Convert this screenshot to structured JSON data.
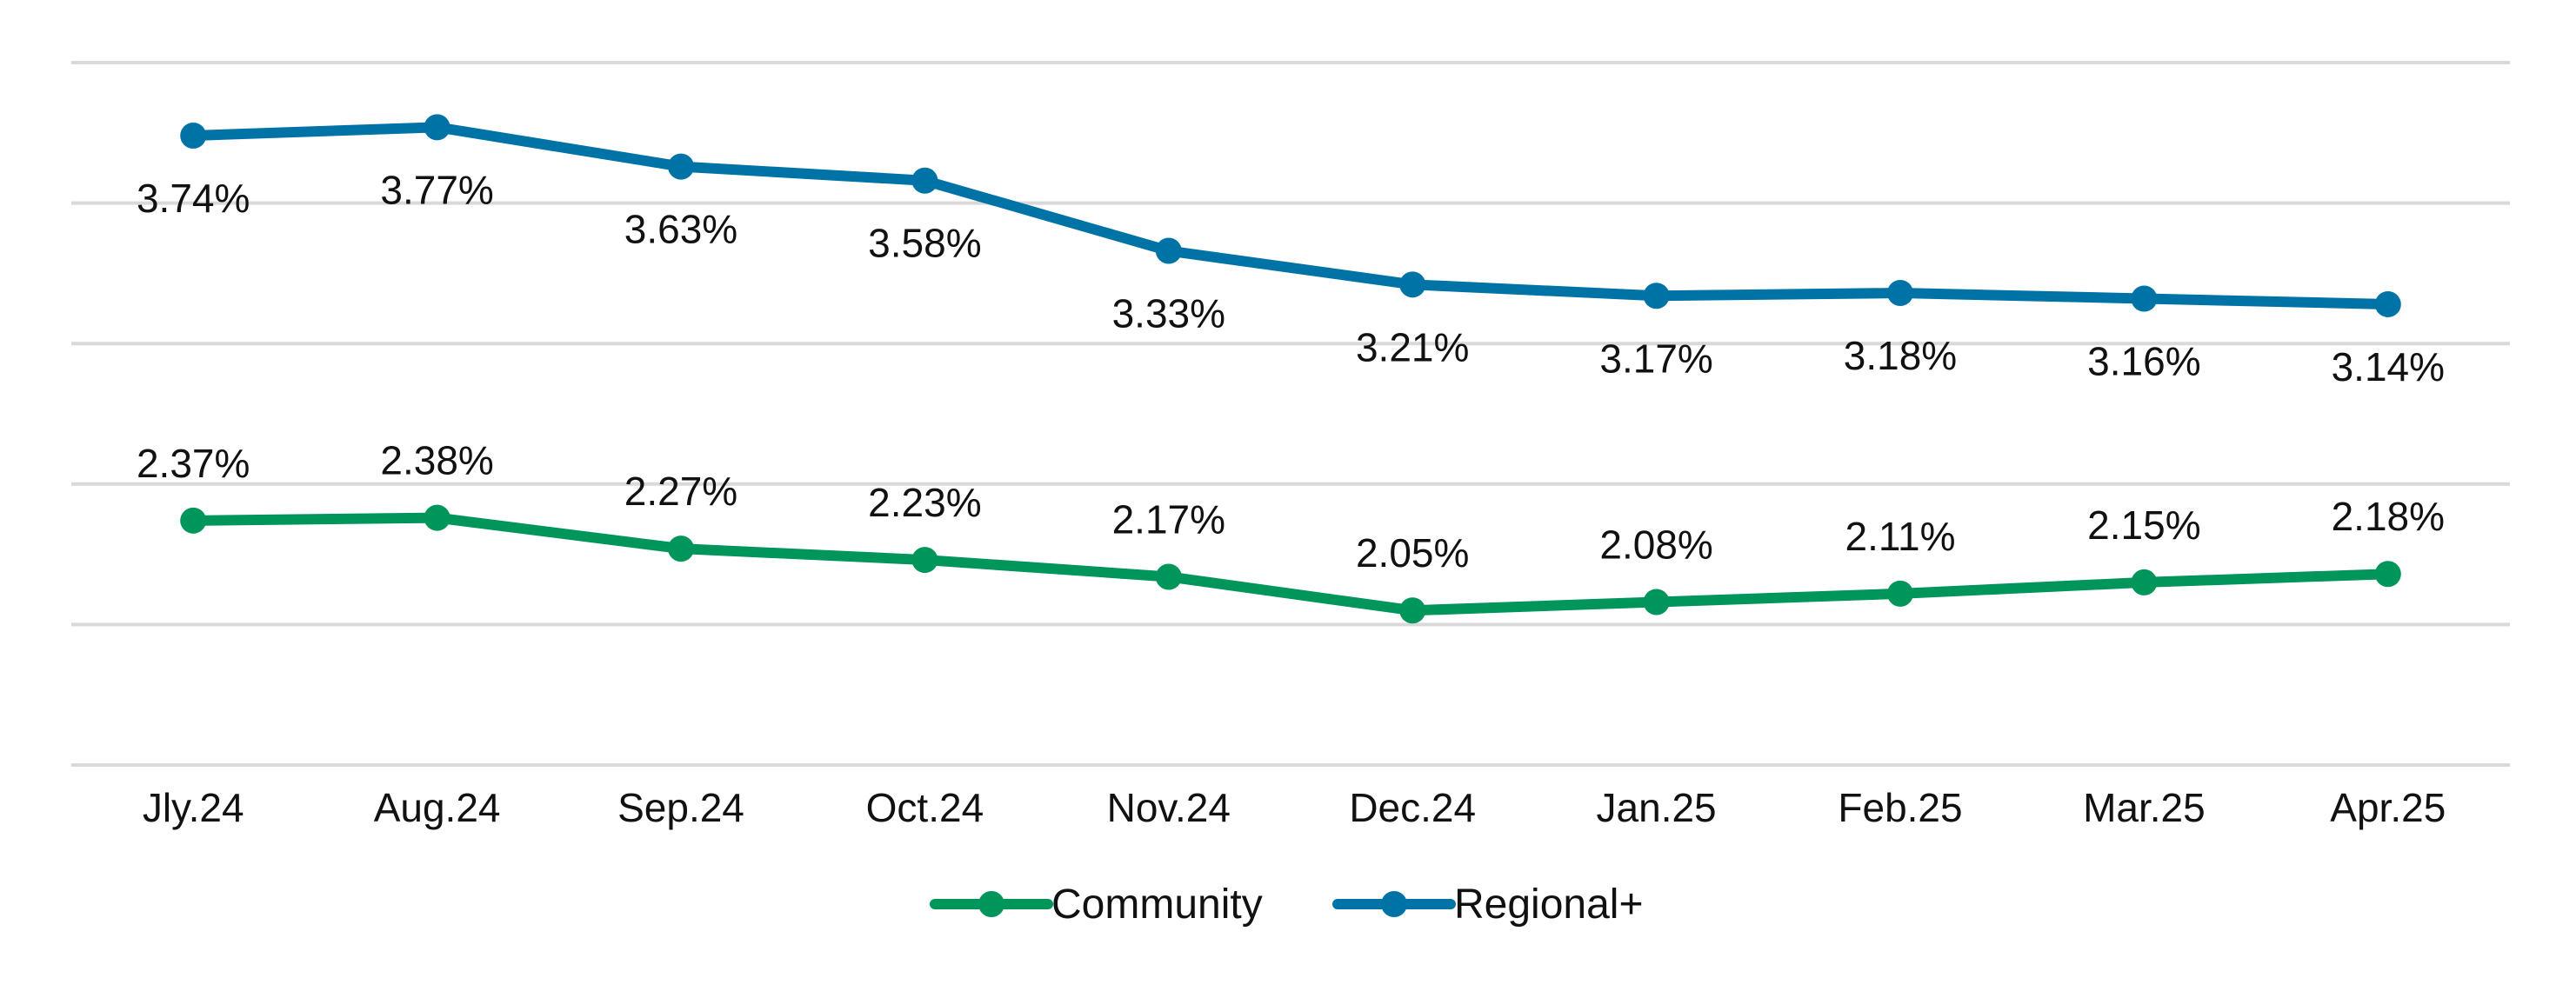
{
  "chart_data": {
    "type": "line",
    "title": "",
    "xlabel": "",
    "ylabel": "",
    "categories": [
      "Jly.24",
      "Aug.24",
      "Sep.24",
      "Oct.24",
      "Nov.24",
      "Dec.24",
      "Jan.25",
      "Feb.25",
      "Mar.25",
      "Apr.25"
    ],
    "ylim": [
      1.5,
      4.0
    ],
    "grid": true,
    "legend_position": "bottom",
    "series": [
      {
        "name": "Community",
        "color": "#00955A",
        "values": [
          2.37,
          2.38,
          2.27,
          2.23,
          2.17,
          2.05,
          2.08,
          2.11,
          2.15,
          2.18
        ],
        "labels": [
          "2.37%",
          "2.38%",
          "2.27%",
          "2.23%",
          "2.17%",
          "2.05%",
          "2.08%",
          "2.11%",
          "2.15%",
          "2.18%"
        ],
        "label_position": "above"
      },
      {
        "name": "Regional+",
        "color": "#0073A6",
        "values": [
          3.74,
          3.77,
          3.63,
          3.58,
          3.33,
          3.21,
          3.17,
          3.18,
          3.16,
          3.14
        ],
        "labels": [
          "3.74%",
          "3.77%",
          "3.63%",
          "3.58%",
          "3.33%",
          "3.21%",
          "3.17%",
          "3.18%",
          "3.16%",
          "3.14%"
        ],
        "label_position": "below"
      }
    ],
    "gridline_color": "#D9D9D9"
  }
}
